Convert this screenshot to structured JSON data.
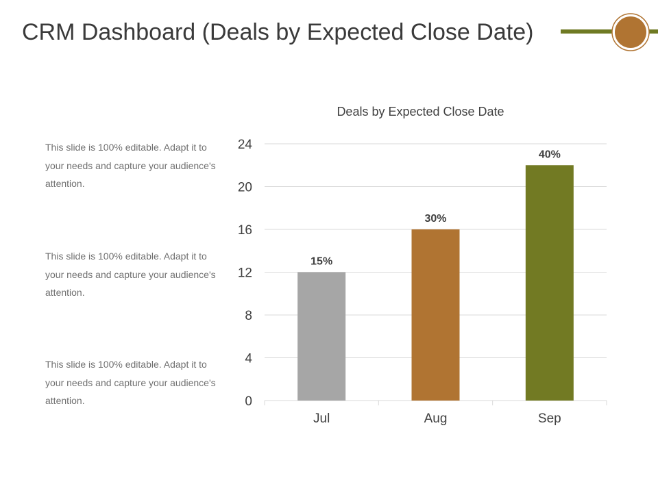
{
  "slide": {
    "title": "CRM Dashboard (Deals by Expected Close Date)"
  },
  "colors": {
    "title": "#3a3a3a",
    "accent_line": "#6f7a23",
    "accent_circle_fill": "#b07432",
    "accent_circle_ring": "#b07432",
    "body_text": "#707070",
    "grid": "#d9d9d9"
  },
  "text_blocks": [
    "This slide is 100% editable. Adapt it to your needs and capture your audience's attention.",
    "This slide is 100% editable. Adapt it to your needs and capture your audience's attention.",
    "This slide is 100% editable. Adapt it to your needs and capture your audience's attention."
  ],
  "chart_data": {
    "type": "bar",
    "title": "Deals by Expected Close Date",
    "categories": [
      "Jul",
      "Aug",
      "Sep"
    ],
    "values": [
      12,
      16,
      22
    ],
    "data_labels": [
      "15%",
      "30%",
      "40%"
    ],
    "bar_colors": [
      "#a6a6a6",
      "#b07432",
      "#727a23"
    ],
    "xlabel": "",
    "ylabel": "",
    "ylim": [
      0,
      24
    ],
    "yticks": [
      0,
      4,
      8,
      12,
      16,
      20,
      24
    ],
    "grid": true,
    "legend": "none"
  }
}
